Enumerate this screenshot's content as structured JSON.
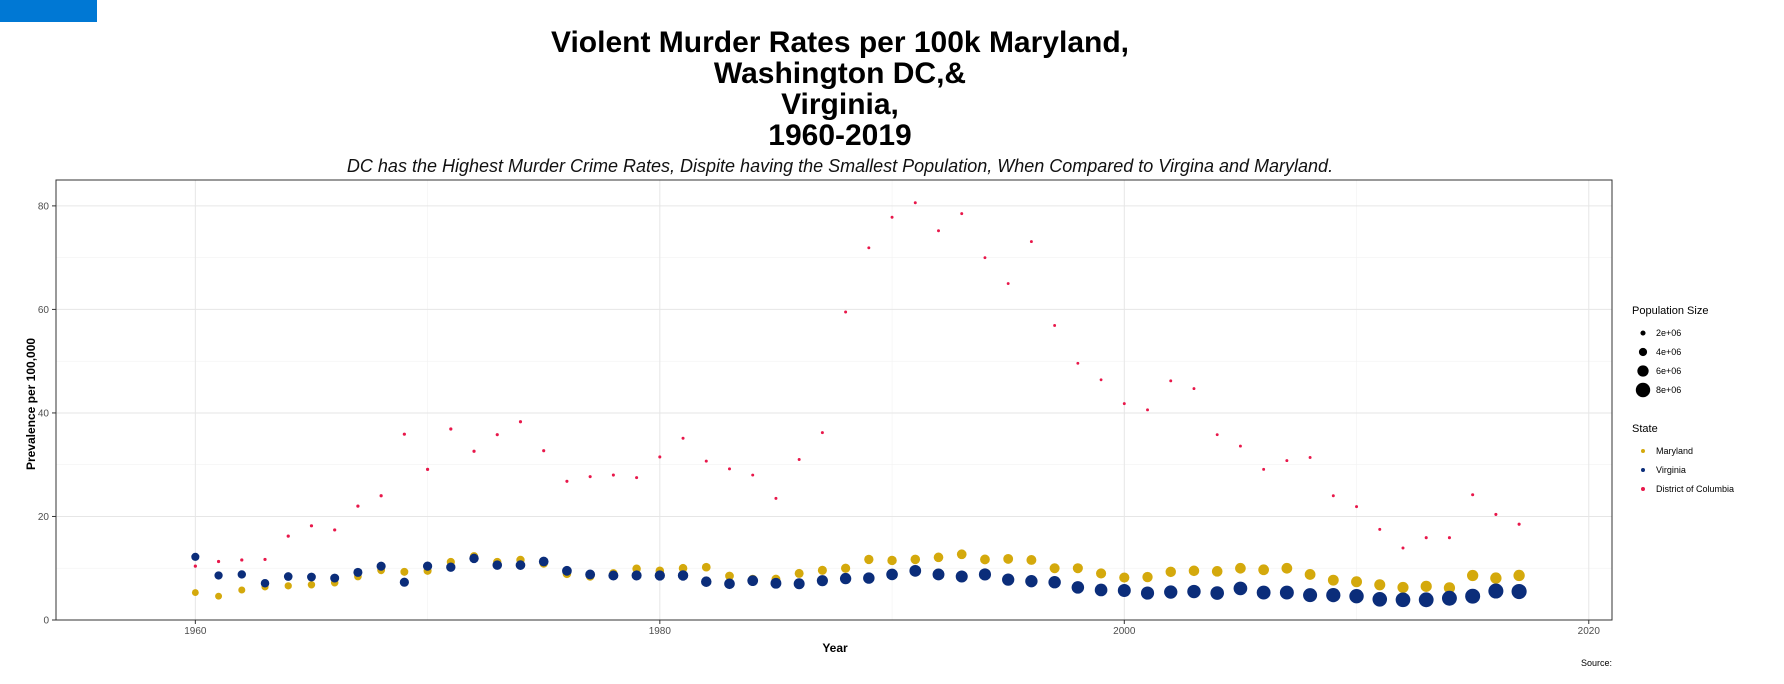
{
  "chart_data": {
    "type": "scatter",
    "title_lines": [
      "Violent Murder Rates per 100k Maryland,",
      "Washington DC,&",
      "Virginia,",
      "1960-2019"
    ],
    "subtitle": "DC has the Highest Murder Crime Rates, Dispite having the Smallest Population, When Compared to Virgina and Maryland.",
    "xlabel": "Year",
    "ylabel": "Prevalence per 100,000",
    "caption": "Source:",
    "xlim": [
      1954,
      2021
    ],
    "ylim": [
      0,
      85
    ],
    "x_ticks": [
      1960,
      1980,
      2000,
      2020
    ],
    "y_ticks": [
      0,
      20,
      40,
      60,
      80
    ],
    "x_tick_labels": [
      "1960",
      "1980",
      "2000",
      "2020"
    ],
    "y_tick_labels": [
      "0",
      "20",
      "40",
      "60",
      "80"
    ],
    "grid": true,
    "legend_position": "right",
    "size_legend": {
      "title": "Population Size",
      "entries": [
        {
          "label": "2e+06",
          "value": 2000000
        },
        {
          "label": "4e+06",
          "value": 4000000
        },
        {
          "label": "6e+06",
          "value": 6000000
        },
        {
          "label": "8e+06",
          "value": 8000000
        }
      ]
    },
    "color_legend": {
      "title": "State",
      "entries": [
        {
          "label": "Maryland",
          "color": "#d4a90c"
        },
        {
          "label": "Virginia",
          "color": "#0b2d7a"
        },
        {
          "label": "District of Columbia",
          "color": "#e8174a"
        }
      ]
    },
    "x": [
      1960,
      1961,
      1962,
      1963,
      1964,
      1965,
      1966,
      1967,
      1968,
      1969,
      1970,
      1971,
      1972,
      1973,
      1974,
      1975,
      1976,
      1977,
      1978,
      1979,
      1980,
      1981,
      1982,
      1983,
      1984,
      1985,
      1986,
      1987,
      1988,
      1989,
      1990,
      1991,
      1992,
      1993,
      1994,
      1995,
      1996,
      1997,
      1998,
      1999,
      2000,
      2001,
      2002,
      2003,
      2004,
      2005,
      2006,
      2007,
      2008,
      2009,
      2010,
      2011,
      2012,
      2013,
      2014,
      2015,
      2016,
      2017,
      2018
    ],
    "series": [
      {
        "name": "Maryland",
        "color": "#d4a90c",
        "values": [
          5.3,
          4.6,
          5.8,
          6.4,
          6.6,
          6.8,
          7.2,
          8.4,
          9.6,
          9.3,
          9.5,
          11.2,
          12.3,
          11.2,
          11.6,
          10.9,
          8.9,
          8.4,
          9.0,
          9.9,
          9.5,
          10.0,
          10.2,
          8.5,
          7.9,
          7.9,
          9.0,
          9.6,
          10.0,
          11.7,
          11.5,
          11.7,
          12.1,
          12.7,
          11.7,
          11.8,
          11.6,
          10.0,
          10.0,
          9.0,
          8.2,
          8.3,
          9.3,
          9.5,
          9.4,
          10.0,
          9.7,
          10.0,
          8.8,
          7.7,
          7.4,
          6.8,
          6.3,
          6.5,
          6.2,
          8.6,
          8.1,
          8.6,
          null
        ],
        "population": [
          3100000,
          3170000,
          3240000,
          3320000,
          3400000,
          3480000,
          3560000,
          3640000,
          3720000,
          3820000,
          3920000,
          3990000,
          4060000,
          4100000,
          4120000,
          4130000,
          4140000,
          4150000,
          4160000,
          4180000,
          4220000,
          4260000,
          4300000,
          4350000,
          4400000,
          4450000,
          4510000,
          4570000,
          4640000,
          4710000,
          4780000,
          4860000,
          4920000,
          4970000,
          5020000,
          5070000,
          5110000,
          5160000,
          5210000,
          5260000,
          5300000,
          5370000,
          5440000,
          5500000,
          5540000,
          5580000,
          5610000,
          5630000,
          5660000,
          5700000,
          5770000,
          5840000,
          5890000,
          5930000,
          5970000,
          5990000,
          6010000,
          6030000,
          null
        ]
      },
      {
        "name": "Virginia",
        "color": "#0b2d7a",
        "values": [
          12.2,
          8.6,
          8.8,
          7.1,
          8.4,
          8.3,
          8.1,
          9.2,
          10.4,
          7.3,
          10.4,
          10.2,
          11.9,
          10.6,
          10.6,
          11.3,
          9.5,
          8.8,
          8.6,
          8.6,
          8.6,
          8.6,
          7.4,
          7.0,
          7.6,
          7.1,
          7.0,
          7.6,
          8.0,
          8.1,
          8.8,
          9.5,
          8.8,
          8.4,
          8.8,
          7.8,
          7.5,
          7.3,
          6.3,
          5.8,
          5.7,
          5.2,
          5.4,
          5.5,
          5.2,
          6.1,
          5.3,
          5.3,
          4.8,
          4.8,
          4.6,
          4.0,
          3.9,
          3.9,
          4.2,
          4.6,
          5.6,
          5.5,
          null
        ],
        "population": [
          3950000,
          4030000,
          4120000,
          4200000,
          4300000,
          4400000,
          4480000,
          4540000,
          4590000,
          4630000,
          4650000,
          4720000,
          4790000,
          4860000,
          4920000,
          4970000,
          5020000,
          5080000,
          5150000,
          5220000,
          5350000,
          5440000,
          5490000,
          5550000,
          5630000,
          5710000,
          5790000,
          5900000,
          6000000,
          6100000,
          6190000,
          6280000,
          6380000,
          6470000,
          6550000,
          6620000,
          6670000,
          6730000,
          6790000,
          6870000,
          7080000,
          7190000,
          7290000,
          7370000,
          7460000,
          7560000,
          7640000,
          7710000,
          7770000,
          7880000,
          8000000,
          8100000,
          8190000,
          8270000,
          8330000,
          8380000,
          8410000,
          8470000,
          null
        ]
      },
      {
        "name": "District of Columbia",
        "color": "#e8174a",
        "values": [
          10.4,
          11.3,
          11.6,
          11.7,
          16.2,
          18.2,
          17.4,
          22.0,
          24.0,
          35.9,
          29.1,
          36.9,
          32.6,
          35.8,
          38.3,
          32.7,
          26.8,
          27.7,
          28.0,
          27.5,
          31.5,
          35.1,
          30.7,
          29.2,
          28.0,
          23.5,
          31.0,
          36.2,
          59.5,
          71.9,
          77.8,
          80.6,
          75.2,
          78.5,
          70.0,
          65.0,
          73.1,
          56.9,
          49.6,
          46.4,
          41.8,
          40.6,
          46.2,
          44.7,
          35.8,
          33.6,
          29.1,
          30.8,
          31.4,
          24.0,
          21.9,
          17.5,
          13.9,
          15.9,
          15.9,
          24.2,
          20.4,
          18.5,
          null
        ],
        "population": [
          764000,
          763000,
          762000,
          761000,
          760000,
          759000,
          758000,
          757000,
          756000,
          755000,
          756000,
          748000,
          740000,
          731000,
          722000,
          712000,
          702000,
          690000,
          678000,
          664000,
          638000,
          636000,
          631000,
          623000,
          623000,
          626000,
          626000,
          622000,
          617000,
          604000,
          607000,
          598000,
          590000,
          578000,
          570000,
          554000,
          543000,
          529000,
          523000,
          519000,
          572000,
          574000,
          573000,
          563000,
          554000,
          551000,
          550000,
          585000,
          592000,
          599000,
          601000,
          617000,
          632000,
          646000,
          658000,
          672000,
          681000,
          694000,
          null
        ]
      }
    ]
  }
}
